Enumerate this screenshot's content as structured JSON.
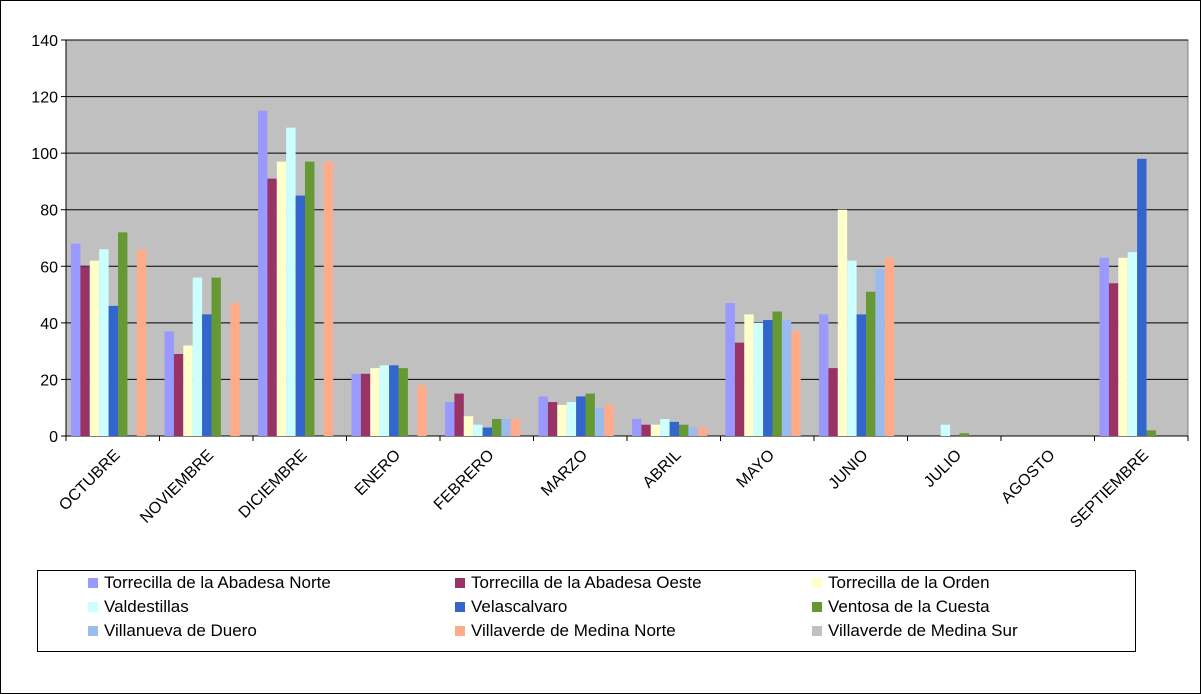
{
  "chart_data": {
    "type": "bar",
    "title": "",
    "xlabel": "",
    "ylabel": "",
    "ylim": [
      0,
      140
    ],
    "yticks": [
      0,
      20,
      40,
      60,
      80,
      100,
      120,
      140
    ],
    "grid": true,
    "legend_position": "bottom",
    "categories": [
      "OCTUBRE",
      "NOVIEMBRE",
      "DICIEMBRE",
      "ENERO",
      "FEBRERO",
      "MARZO",
      "ABRIL",
      "MAYO",
      "JUNIO",
      "JULIO",
      "AGOSTO",
      "SEPTIEMBRE"
    ],
    "series": [
      {
        "name": "Torrecilla de la Abadesa Norte",
        "color": "#9999FF",
        "values": [
          68,
          37,
          115,
          22,
          12,
          14,
          6,
          47,
          43,
          0,
          0,
          63
        ]
      },
      {
        "name": "Torrecilla de la Abadesa Oeste",
        "color": "#993366",
        "values": [
          60,
          29,
          91,
          22,
          15,
          12,
          4,
          33,
          24,
          0,
          0,
          54
        ]
      },
      {
        "name": "Torrecilla de la Orden",
        "color": "#FFFFCC",
        "values": [
          62,
          32,
          97,
          24,
          7,
          11,
          4,
          43,
          80,
          0,
          0,
          63
        ]
      },
      {
        "name": "Valdestillas",
        "color": "#CCFFFF",
        "values": [
          66,
          56,
          109,
          25,
          4,
          12,
          6,
          40,
          62,
          4,
          0,
          65
        ]
      },
      {
        "name": "Velascalvaro",
        "color": "#3366CC",
        "values": [
          46,
          43,
          85,
          25,
          3,
          14,
          5,
          41,
          43,
          0,
          0,
          98
        ]
      },
      {
        "name": "Ventosa de la Cuesta",
        "color": "#669933",
        "values": [
          72,
          56,
          97,
          24,
          6,
          15,
          4,
          44,
          51,
          1,
          0,
          2
        ]
      },
      {
        "name": "Villanueva de Duero",
        "color": "#99BBEE",
        "values": [
          0,
          0,
          0,
          0,
          6,
          10,
          3,
          41,
          59,
          0,
          0,
          0
        ]
      },
      {
        "name": "Villaverde de Medina Norte",
        "color": "#FFAA88",
        "values": [
          66,
          47,
          97,
          18,
          6,
          11,
          3,
          37,
          63,
          0,
          0,
          0
        ]
      },
      {
        "name": "Villaverde de Medina Sur",
        "color": "#C0C0C0",
        "values": [
          0,
          0,
          0,
          0,
          0,
          0,
          0,
          0,
          0,
          0,
          0,
          0
        ]
      }
    ]
  }
}
